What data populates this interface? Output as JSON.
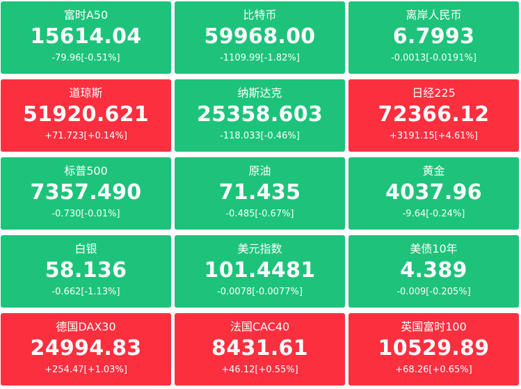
{
  "colors": {
    "up": "#fc2f3f",
    "down": "#1dc37a",
    "text": "#ffffff"
  },
  "tiles": [
    {
      "name": "富时A50",
      "price": "15614.04",
      "change": "-79.96[-0.51%]",
      "direction": "down"
    },
    {
      "name": "比特币",
      "price": "59968.00",
      "change": "-1109.99[-1.82%]",
      "direction": "down"
    },
    {
      "name": "离岸人民币",
      "price": "6.7993",
      "change": "-0.0013[-0.0191%]",
      "direction": "down"
    },
    {
      "name": "道琼斯",
      "price": "51920.621",
      "change": "+71.723[+0.14%]",
      "direction": "up"
    },
    {
      "name": "纳斯达克",
      "price": "25358.603",
      "change": "-118.033[-0.46%]",
      "direction": "down"
    },
    {
      "name": "日经225",
      "price": "72366.12",
      "change": "+3191.15[+4.61%]",
      "direction": "up"
    },
    {
      "name": "标普500",
      "price": "7357.490",
      "change": "-0.730[-0.01%]",
      "direction": "down"
    },
    {
      "name": "原油",
      "price": "71.435",
      "change": "-0.485[-0.67%]",
      "direction": "down"
    },
    {
      "name": "黄金",
      "price": "4037.96",
      "change": "-9.64[-0.24%]",
      "direction": "down"
    },
    {
      "name": "白银",
      "price": "58.136",
      "change": "-0.662[-1.13%]",
      "direction": "down"
    },
    {
      "name": "美元指数",
      "price": "101.4481",
      "change": "-0.0078[-0.0077%]",
      "direction": "down"
    },
    {
      "name": "美债10年",
      "price": "4.389",
      "change": "-0.009[-0.205%]",
      "direction": "down"
    },
    {
      "name": "德国DAX30",
      "price": "24994.83",
      "change": "+254.47[+1.03%]",
      "direction": "up"
    },
    {
      "name": "法国CAC40",
      "price": "8431.61",
      "change": "+46.12[+0.55%]",
      "direction": "up"
    },
    {
      "name": "英国富时100",
      "price": "10529.89",
      "change": "+68.26[+0.65%]",
      "direction": "up"
    }
  ]
}
